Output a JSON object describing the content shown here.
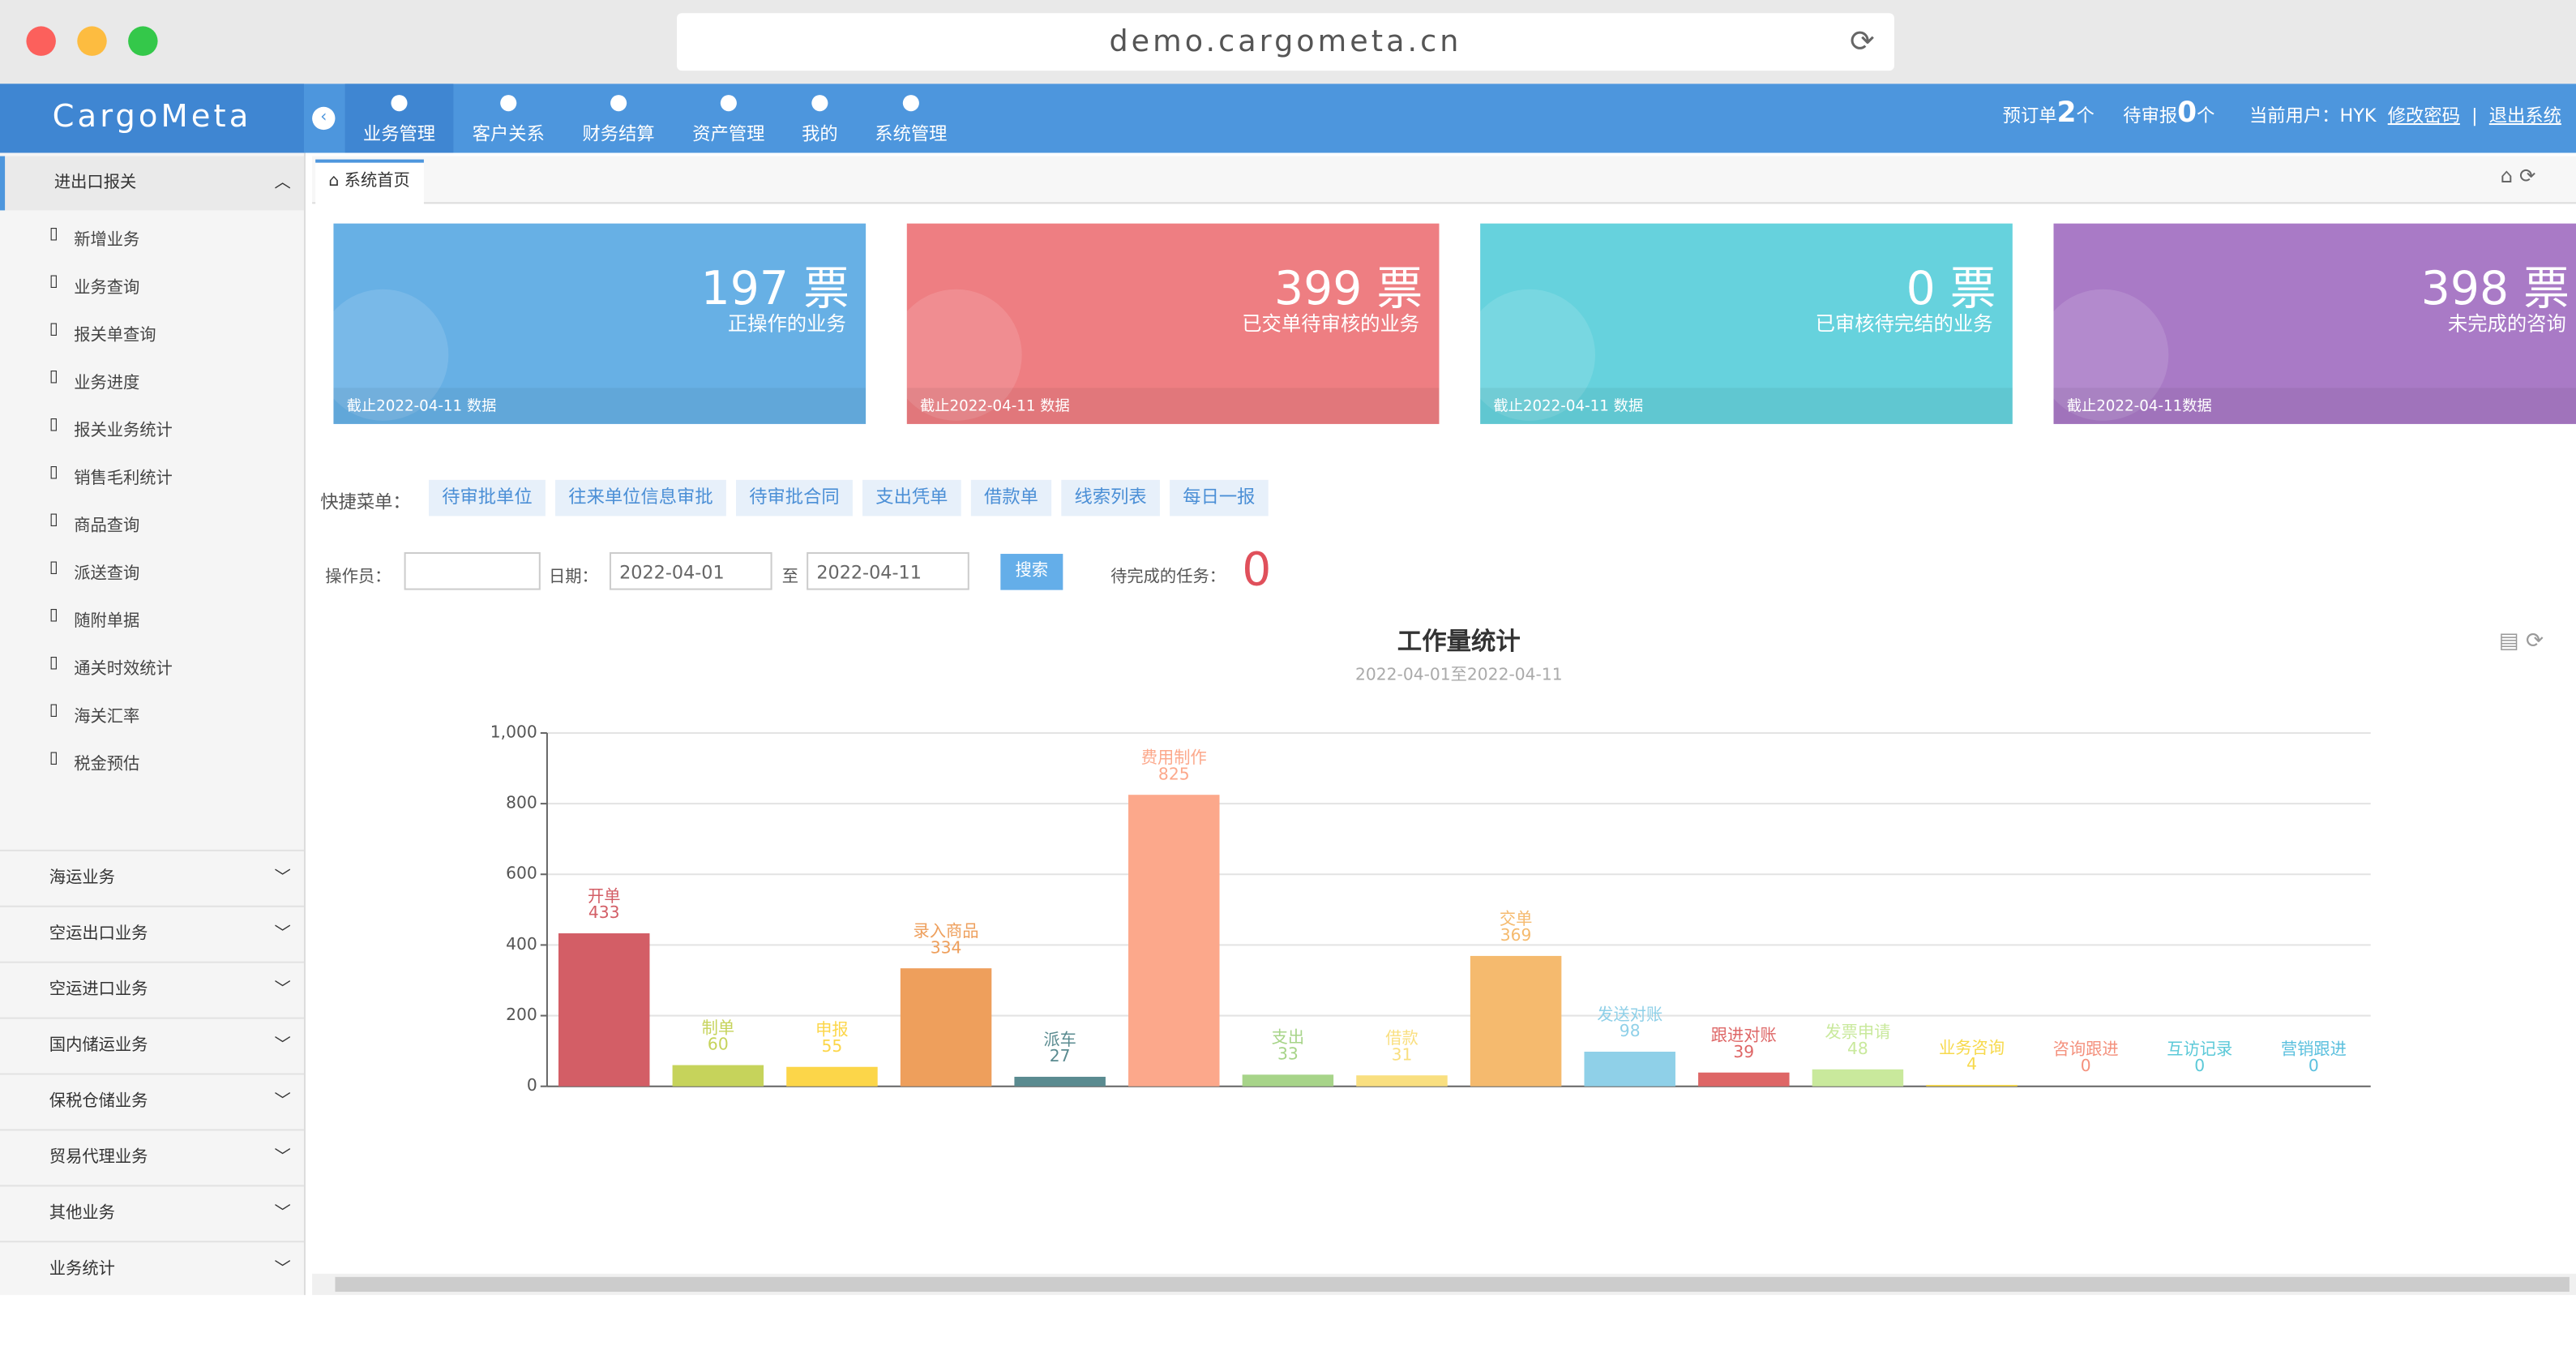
{
  "browser": {
    "url": "demo.cargometa.cn"
  },
  "header": {
    "logo": "CargoMeta",
    "nav": [
      "业务管理",
      "客户关系",
      "财务结算",
      "资产管理",
      "我的",
      "系统管理"
    ],
    "booking_label": "预订单",
    "booking_count": 2,
    "booking_unit": "个",
    "declare_label": "待审报",
    "declare_count": 0,
    "declare_unit": "个",
    "user": "当前用户：HYK",
    "change_password": "修改密码",
    "separator": "|",
    "logout": "退出系统"
  },
  "sidebar": {
    "open_section": {
      "title": "进出口报关",
      "items": [
        "新增业务",
        "业务查询",
        "报关单查询",
        "业务进度",
        "报关业务统计",
        "销售毛利统计",
        "商品查询",
        "派送查询",
        "随附单据",
        "通关时效统计",
        "海关汇率",
        "税金预估"
      ]
    },
    "sections": [
      "海运业务",
      "空运出口业务",
      "空运进口业务",
      "国内储运业务",
      "保税仓储业务",
      "贸易代理业务",
      "其他业务",
      "业务统计"
    ]
  },
  "tab": "系统首页",
  "cards": [
    {
      "value": 197,
      "unit": "票",
      "label": "正操作的业务",
      "note": "截止2022-04-11 数据",
      "color": "#67b0e5"
    },
    {
      "value": 399,
      "unit": "票",
      "label": "已交单待审核的业务",
      "note": "截止2022-04-11 数据",
      "color": "#ee7e82"
    },
    {
      "value": 0,
      "unit": "票",
      "label": "已审核待完结的业务",
      "note": "截止2022-04-11 数据",
      "color": "#66d2dd"
    },
    {
      "value": 398,
      "unit": "票",
      "label": "未完成的咨询",
      "note": "截止2022-04-11数据",
      "color": "#a97ac6"
    }
  ],
  "quick_menu": {
    "label": "快捷菜单：",
    "items": [
      "待审批单位",
      "往来单位信息审批",
      "待审批合同",
      "支出凭单",
      "借款单",
      "线索列表",
      "每日一报"
    ]
  },
  "filter": {
    "operator_label": "操作员：",
    "date_label": "日期：",
    "from": "2022-04-01",
    "to_label": "至",
    "to": "2022-04-11",
    "button": "搜索",
    "pending_label": "待完成的任务：",
    "pending": 0
  },
  "chart_data": {
    "type": "bar",
    "title": "工作量统计",
    "subtitle": "2022-04-01至2022-04-11",
    "categories": [
      "开单",
      "制单",
      "申报",
      "录入商品",
      "派车",
      "费用制作",
      "支出",
      "借款",
      "交单",
      "发送对账",
      "跟进对账",
      "发票申请",
      "业务咨询",
      "咨询跟进",
      "互访记录",
      "营销跟进"
    ],
    "values": [
      433,
      60,
      55,
      334,
      27,
      825,
      33,
      31,
      369,
      98,
      39,
      48,
      4,
      0,
      0,
      0
    ],
    "colors": [
      "#d35e66",
      "#c6d35b",
      "#fcd649",
      "#ee9f5c",
      "#5a8b90",
      "#fca88b",
      "#a7d489",
      "#f9df80",
      "#f5ba6e",
      "#8fd0e8",
      "#de6666",
      "#c9e99c",
      "#f7d94b",
      "#f4917d",
      "#5bc9d8",
      "#5bc0de"
    ],
    "ylim": [
      0,
      1000
    ],
    "yticks": [
      0,
      200,
      400,
      600,
      800,
      {
        "value": 1000,
        "label": "1,000"
      }
    ],
    "grid": true
  }
}
